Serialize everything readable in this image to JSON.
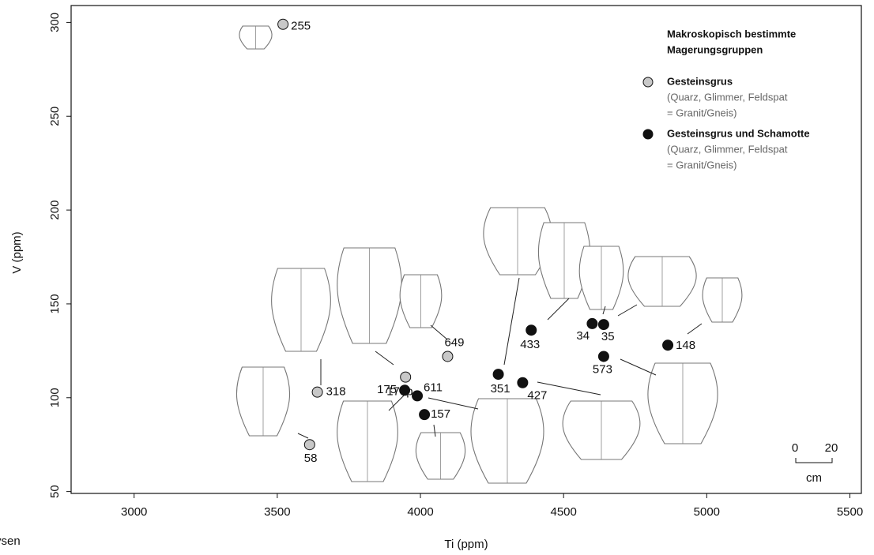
{
  "chart_data": {
    "type": "scatter",
    "xlabel": "Ti (ppm)",
    "ylabel": "V (ppm)",
    "xlim": [
      2780,
      5540
    ],
    "ylim": [
      49,
      309
    ],
    "xticks": [
      3000,
      3500,
      4000,
      4500,
      5000,
      5500
    ],
    "yticks": [
      50,
      100,
      150,
      200,
      250,
      300
    ],
    "legend_title": [
      "Makroskopisch bestimmte",
      "Magerungsgruppen"
    ],
    "legend_position": "upper right",
    "series": [
      {
        "name": "Gesteinsgrus",
        "color": "#c8c8c8",
        "description": [
          "(Quarz, Glimmer, Feldspat",
          "= Granit/Gneis)"
        ],
        "labels": [
          "255",
          "649",
          "170p",
          "318",
          "58"
        ],
        "x": [
          3520,
          4095,
          3948,
          3640,
          3613
        ],
        "values": [
          299,
          122,
          111,
          103,
          75
        ]
      },
      {
        "name": "Gesteinsgrus und Schamotte",
        "color": "#111111",
        "description": [
          "(Quarz, Glimmer, Feldspat",
          "= Granit/Gneis)"
        ],
        "labels": [
          "175",
          "611",
          "157",
          "351",
          "427",
          "433",
          "34",
          "35",
          "573",
          "148"
        ],
        "x": [
          3945,
          3989,
          4014,
          4272,
          4357,
          4387,
          4600,
          4640,
          4640,
          4864
        ],
        "values": [
          104,
          101,
          91,
          112.5,
          108,
          136,
          139.5,
          139,
          122,
          128
        ]
      }
    ],
    "scale_bar": {
      "ticks": [
        0,
        20
      ],
      "unit": "cm"
    },
    "footer_fragment": "ysen"
  }
}
